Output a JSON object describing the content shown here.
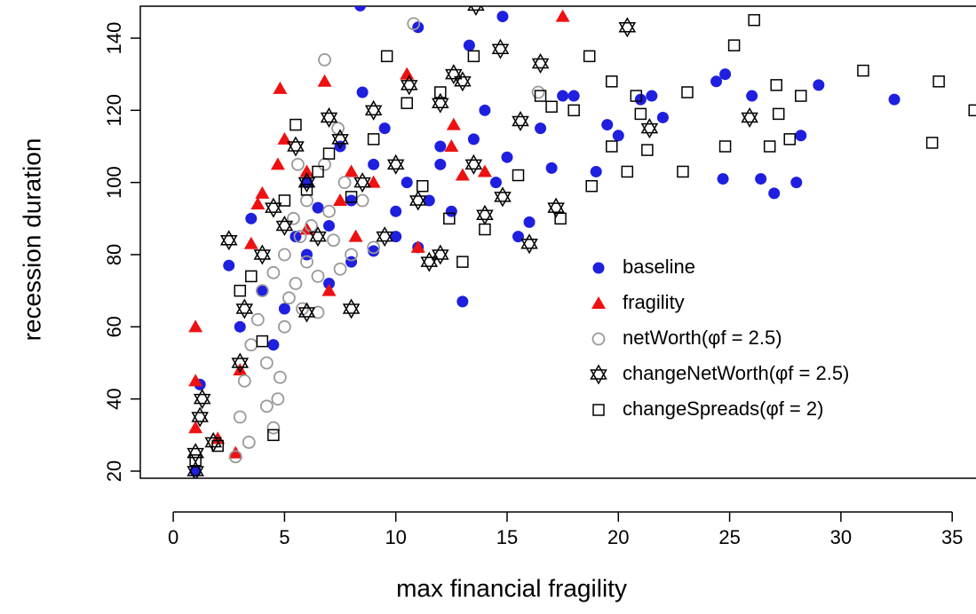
{
  "chart_data": {
    "type": "scatter",
    "xlabel": "max financial fragility",
    "ylabel": "recession duration",
    "xlim": [
      -1.48,
      36.07
    ],
    "ylim": [
      18.03,
      148.85
    ],
    "xticks": [
      0,
      5,
      10,
      15,
      20,
      25,
      30,
      35
    ],
    "yticks": [
      20,
      40,
      60,
      80,
      100,
      120,
      140
    ],
    "legend_position": "right",
    "series": [
      {
        "name": "baseline",
        "color": "#1f1fe0",
        "marker": "filled-circle",
        "x": [
          1,
          1.2,
          2.5,
          3,
          3.5,
          4,
          4.5,
          5,
          5.5,
          6,
          6.5,
          7,
          7.5,
          8,
          8.5,
          9,
          9.5,
          10,
          10.5,
          11,
          11.5,
          12,
          12.5,
          13,
          13.5,
          14,
          14.5,
          15,
          15.5,
          16,
          16.5,
          17,
          17.5,
          18,
          19,
          19.5,
          20,
          21,
          21.5,
          22,
          24.4,
          24.7,
          24.8,
          26,
          26.4,
          27,
          28,
          28.2,
          29,
          32.4,
          12,
          10,
          8,
          7,
          6,
          9,
          11,
          13.3,
          14.8,
          8.4
        ],
        "values": [
          20,
          44,
          77,
          60,
          90,
          70,
          55,
          65,
          85,
          100,
          93,
          88,
          110,
          95,
          125,
          105,
          115,
          85,
          100,
          143,
          95,
          105,
          92,
          67,
          112,
          120,
          100,
          107,
          85,
          89,
          115,
          104,
          124,
          124,
          103,
          116,
          113,
          123,
          124,
          118,
          128,
          101,
          130,
          124,
          101,
          97,
          100,
          113,
          127,
          123,
          110,
          92,
          78,
          72,
          80,
          81,
          82,
          138,
          146,
          149
        ]
      },
      {
        "name": "fragility",
        "color": "#ee1111",
        "marker": "filled-triangle",
        "x": [
          1,
          1,
          1,
          2,
          2.8,
          3,
          3.5,
          3.8,
          4,
          4.7,
          4.8,
          5,
          6,
          6.8,
          7,
          7.5,
          8,
          9,
          10.5,
          11,
          12.5,
          13,
          14,
          17.5,
          6,
          8.2,
          12.6
        ],
        "values": [
          60,
          45,
          32,
          29,
          25,
          48,
          83,
          94,
          97,
          105,
          126,
          112,
          87,
          128,
          70,
          95,
          103,
          100,
          130,
          82,
          110,
          102,
          103,
          146,
          103,
          85,
          116
        ]
      },
      {
        "name": "netWorth(φf = 2.5)",
        "color": "#999999",
        "marker": "open-circle",
        "x": [
          2.8,
          3,
          3.2,
          3.5,
          3.8,
          4,
          4.2,
          4.5,
          4.7,
          5,
          5.2,
          5.5,
          5.7,
          6,
          6.2,
          6.5,
          6.8,
          7,
          7.2,
          7.4,
          7.7,
          8,
          8.5,
          9,
          6.8,
          10.8,
          16.4,
          5.6,
          4.5,
          5,
          5.8,
          6.5,
          7.5,
          4.2,
          3.4,
          5.4,
          6,
          4.8
        ],
        "values": [
          24,
          35,
          45,
          55,
          62,
          70,
          50,
          75,
          40,
          80,
          68,
          72,
          85,
          78,
          88,
          74,
          105,
          92,
          84,
          115,
          100,
          80,
          95,
          82,
          134,
          144,
          125,
          105,
          32,
          60,
          65,
          64,
          76,
          38,
          28,
          90,
          95,
          46
        ]
      },
      {
        "name": "changeNetWorth(φf = 2.5)",
        "color": "#000000",
        "marker": "star",
        "x": [
          1,
          1,
          1.2,
          1.3,
          1.8,
          2.5,
          3,
          3.2,
          4,
          4.5,
          5,
          5.5,
          6,
          6.5,
          7,
          7.5,
          8,
          8.5,
          9,
          10,
          10.6,
          11,
          11.5,
          12,
          12.6,
          13,
          13.5,
          14,
          14.7,
          14.8,
          15.6,
          16,
          16.5,
          17.2,
          20.4,
          21.4,
          25.9,
          13.6,
          6,
          9.5,
          12
        ],
        "values": [
          20,
          25,
          35,
          40,
          28,
          84,
          50,
          65,
          80,
          93,
          88,
          110,
          100,
          85,
          118,
          112,
          65,
          100,
          120,
          105,
          127,
          95,
          78,
          122,
          130,
          128,
          105,
          91,
          137,
          96,
          117,
          83,
          133,
          93,
          143,
          115,
          118,
          149,
          64,
          85,
          80
        ]
      },
      {
        "name": "changeSpreads(φf = 2)",
        "color": "#000000",
        "marker": "open-square",
        "x": [
          1,
          2,
          3,
          3.5,
          4,
          4.5,
          5,
          5.5,
          6,
          6.5,
          7,
          8,
          9,
          9.6,
          10.5,
          11.2,
          12,
          13,
          13.5,
          14,
          15.5,
          16.5,
          17,
          18,
          18.7,
          18.8,
          19.7,
          19.7,
          20.4,
          20.8,
          21,
          21.3,
          22.9,
          23.1,
          24.8,
          25.2,
          26.1,
          26.8,
          27.1,
          27.2,
          27.7,
          28.2,
          31,
          34.1,
          34.4,
          36,
          17.4,
          12.4
        ],
        "values": [
          23,
          27,
          70,
          74,
          56,
          30,
          95,
          116,
          98,
          103,
          108,
          96,
          112,
          135,
          122,
          99,
          125,
          78,
          135,
          87,
          102,
          124,
          121,
          120,
          135,
          99,
          128,
          110,
          103,
          124,
          119,
          109,
          103,
          125,
          110,
          138,
          145,
          110,
          127,
          119,
          112,
          124,
          131,
          111,
          128,
          120,
          90,
          90
        ]
      }
    ]
  }
}
